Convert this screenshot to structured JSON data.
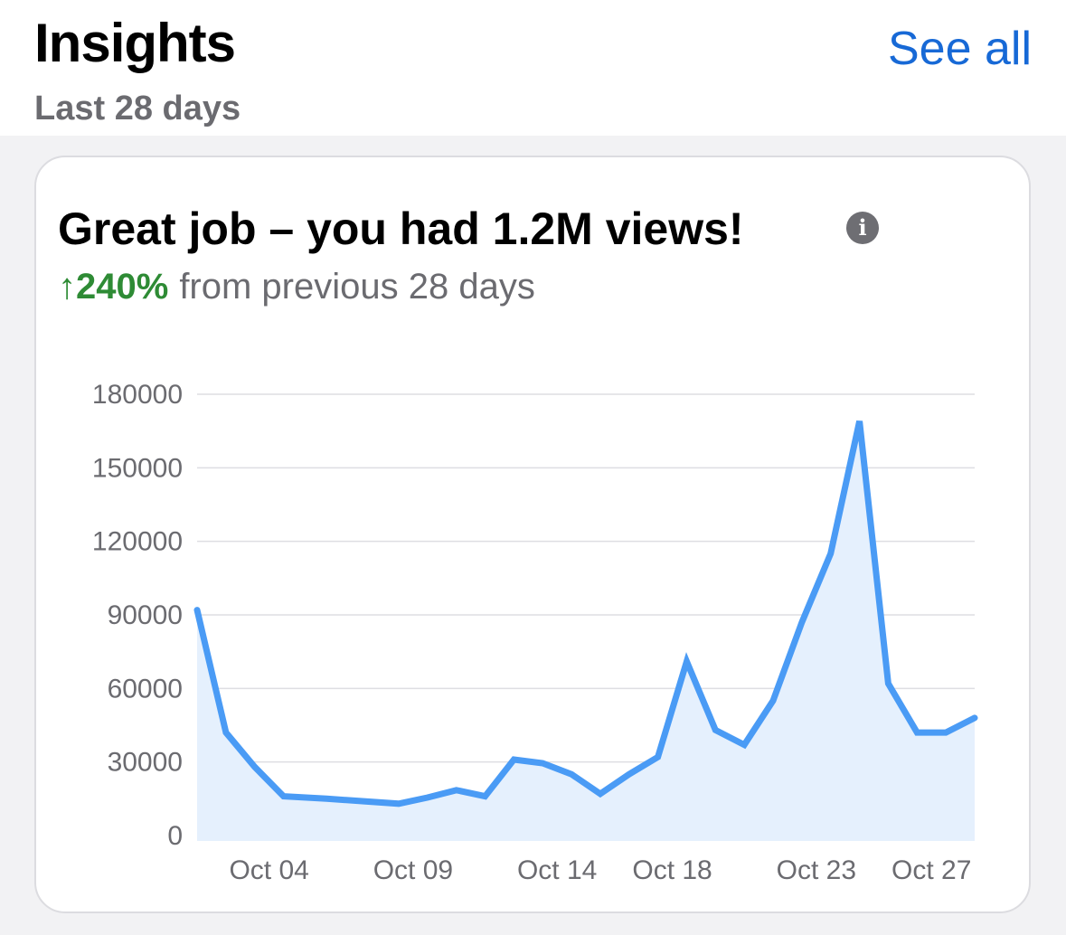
{
  "header": {
    "title": "Insights",
    "subtitle": "Last 28 days",
    "see_all_label": "See all"
  },
  "card": {
    "headline": "Great job – you had 1.2M views!",
    "info_icon": "info-icon",
    "change_value": "↑240%",
    "change_text": "from previous 28 days"
  },
  "colors": {
    "accent": "#1769d6",
    "positive": "#2e8b35",
    "line": "#4a9bf5",
    "area": "#e5f0fd"
  },
  "chart_data": {
    "type": "area",
    "title": "",
    "xlabel": "",
    "ylabel": "",
    "ylim": [
      0,
      180000
    ],
    "yticks": [
      0,
      30000,
      60000,
      90000,
      120000,
      150000,
      180000
    ],
    "ytick_labels": [
      "0",
      "30000",
      "60000",
      "90000",
      "120000",
      "150000",
      "180000"
    ],
    "xtick_labels": [
      {
        "day": 4,
        "label": "Oct 04"
      },
      {
        "day": 9,
        "label": "Oct 09"
      },
      {
        "day": 14,
        "label": "Oct 14"
      },
      {
        "day": 18,
        "label": "Oct 18"
      },
      {
        "day": 23,
        "label": "Oct 23"
      },
      {
        "day": 27,
        "label": "Oct 27"
      }
    ],
    "grid": true,
    "series": [
      {
        "values": [
          {
            "day": 1.5,
            "views": 92000
          },
          {
            "day": 2.5,
            "views": 42000
          },
          {
            "day": 3.5,
            "views": 28000
          },
          {
            "day": 4.5,
            "views": 16000
          },
          {
            "day": 6.0,
            "views": 15000
          },
          {
            "day": 8.5,
            "views": 13000
          },
          {
            "day": 9.5,
            "views": 15500
          },
          {
            "day": 10.5,
            "views": 18500
          },
          {
            "day": 11.5,
            "views": 16000
          },
          {
            "day": 12.5,
            "views": 31000
          },
          {
            "day": 13.5,
            "views": 29500
          },
          {
            "day": 14.5,
            "views": 25000
          },
          {
            "day": 15.5,
            "views": 17000
          },
          {
            "day": 16.5,
            "views": 25000
          },
          {
            "day": 17.5,
            "views": 32000
          },
          {
            "day": 18.5,
            "views": 71000
          },
          {
            "day": 19.5,
            "views": 43000
          },
          {
            "day": 20.5,
            "views": 37000
          },
          {
            "day": 21.5,
            "views": 55000
          },
          {
            "day": 22.5,
            "views": 87000
          },
          {
            "day": 23.5,
            "views": 115000
          },
          {
            "day": 24.5,
            "views": 169000
          },
          {
            "day": 25.5,
            "views": 62000
          },
          {
            "day": 26.5,
            "views": 42000
          },
          {
            "day": 27.5,
            "views": 42000
          },
          {
            "day": 28.5,
            "views": 48000
          }
        ]
      }
    ]
  }
}
